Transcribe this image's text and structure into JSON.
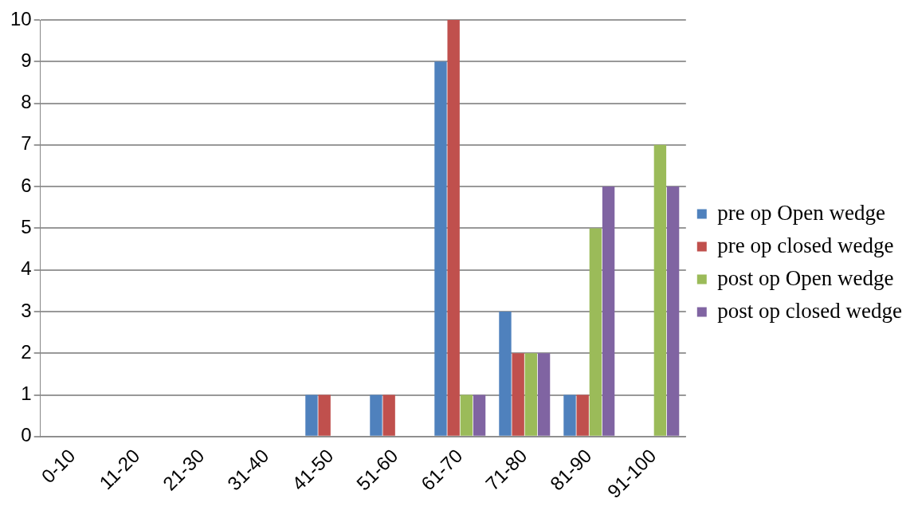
{
  "chart_data": {
    "type": "bar",
    "categories": [
      "0-10",
      "11-20",
      "21-30",
      "31-40",
      "41-50",
      "51-60",
      "61-70",
      "71-80",
      "81-90",
      "91-100"
    ],
    "series": [
      {
        "name": "pre op Open wedge",
        "color": "#4f81bd",
        "values": [
          0,
          0,
          0,
          0,
          1,
          1,
          9,
          3,
          1,
          0
        ]
      },
      {
        "name": "pre op closed wedge",
        "color": "#c0504d",
        "values": [
          0,
          0,
          0,
          0,
          1,
          1,
          10,
          2,
          1,
          0
        ]
      },
      {
        "name": "post op Open wedge",
        "color": "#9bbb59",
        "values": [
          0,
          0,
          0,
          0,
          0,
          0,
          1,
          2,
          5,
          7
        ]
      },
      {
        "name": "post op closed wedge",
        "color": "#8064a2",
        "values": [
          0,
          0,
          0,
          0,
          0,
          0,
          1,
          2,
          6,
          6
        ]
      }
    ],
    "ylim": [
      0,
      10
    ],
    "yticks": [
      0,
      1,
      2,
      3,
      4,
      5,
      6,
      7,
      8,
      9,
      10
    ],
    "grid": "y",
    "legend": "right"
  }
}
